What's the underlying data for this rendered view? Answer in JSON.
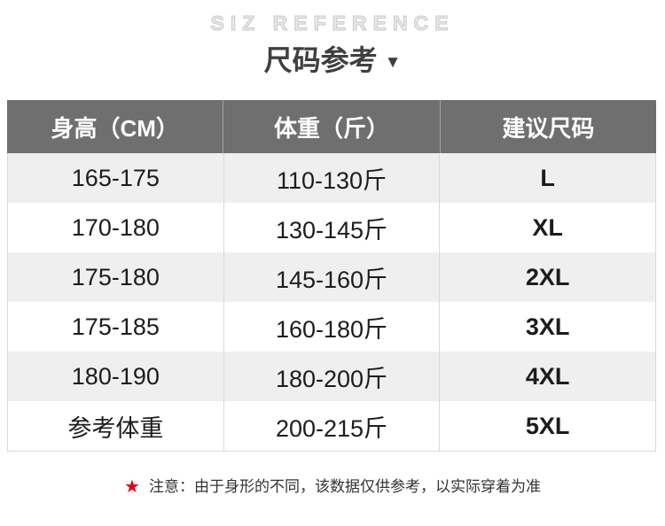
{
  "chart_data": {
    "type": "table",
    "subtitle": "SIZ REFERENCE",
    "title": "尺码参考",
    "columns": [
      "身高（CM）",
      "体重（斤）",
      "建议尺码"
    ],
    "rows": [
      [
        "165-175",
        "110-130斤",
        "L"
      ],
      [
        "170-180",
        "130-145斤",
        "XL"
      ],
      [
        "175-180",
        "145-160斤",
        "2XL"
      ],
      [
        "175-185",
        "160-180斤",
        "3XL"
      ],
      [
        "180-190",
        "180-200斤",
        "4XL"
      ],
      [
        "参考体重",
        "200-215斤",
        "5XL"
      ]
    ],
    "note": "注意：由于身形的不同，该数据仅供参考，以实际穿着为准",
    "layout_hints": {
      "header_style": "gray bar, white bold text",
      "row_striping": "odd rows light gray, even rows white",
      "columns_equal_width": true
    }
  },
  "glyphs": {
    "arrow": "▼",
    "star": "★"
  },
  "colors": {
    "header_bg": "#6f6f6f",
    "header_text": "#ffffff",
    "alt_row_bg": "#efefef",
    "body_text": "#1c1c1c",
    "title_text": "#3f3f3f",
    "eyebrow_text": "#d4d4d4",
    "star_red": "#e60012",
    "divider": "#d9d9d9"
  }
}
